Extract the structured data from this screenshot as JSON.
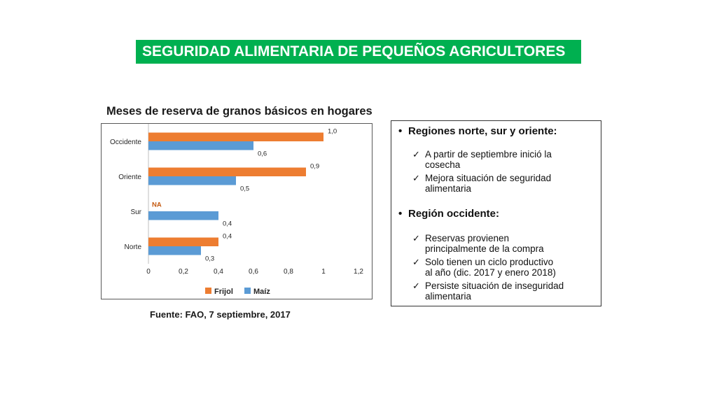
{
  "header": {
    "title": "SEGURIDAD ALIMENTARIA DE PEQUEÑOS AGRICULTORES"
  },
  "chart_data": {
    "type": "bar",
    "orientation": "horizontal",
    "title": "Meses de reserva de granos básicos en hogares",
    "categories": [
      "Occidente",
      "Oriente",
      "Sur",
      "Norte"
    ],
    "series": [
      {
        "name": "Frijol",
        "values": [
          1.0,
          0.9,
          null,
          0.4
        ],
        "labels": [
          "1,0",
          "0,9",
          "",
          "0,4"
        ],
        "color": "#ed7d31"
      },
      {
        "name": "Maíz",
        "values": [
          0.6,
          0.5,
          0.4,
          0.3
        ],
        "labels": [
          "0,6",
          "0,5",
          "0,4",
          "0,3"
        ],
        "color": "#5b9bd5"
      }
    ],
    "annotation": {
      "text": "NA",
      "category": "Sur",
      "color": "#c55a11"
    },
    "xlim": [
      0,
      1.2
    ],
    "xticks": [
      0,
      0.2,
      0.4,
      0.6,
      0.8,
      1,
      1.2
    ],
    "xtick_labels": [
      "0",
      "0,2",
      "0,4",
      "0,6",
      "0,8",
      "1",
      "1,2"
    ],
    "grid": false,
    "legend": "bottom"
  },
  "source": "Fuente: FAO, 7 septiembre, 2017",
  "notes": {
    "sections": [
      {
        "heading": "Regiones norte, sur y oriente:",
        "items": [
          [
            "A partir de septiembre inició la",
            "cosecha"
          ],
          [
            "Mejora situación de seguridad",
            "alimentaria"
          ]
        ]
      },
      {
        "heading": "Región occidente:",
        "items": [
          [
            "Reservas provienen",
            "principalmente de la compra"
          ],
          [
            "Solo tienen un ciclo productivo",
            "al año (dic. 2017 y enero 2018)"
          ],
          [
            "Persiste situación de inseguridad",
            "alimentaria"
          ]
        ]
      }
    ]
  }
}
